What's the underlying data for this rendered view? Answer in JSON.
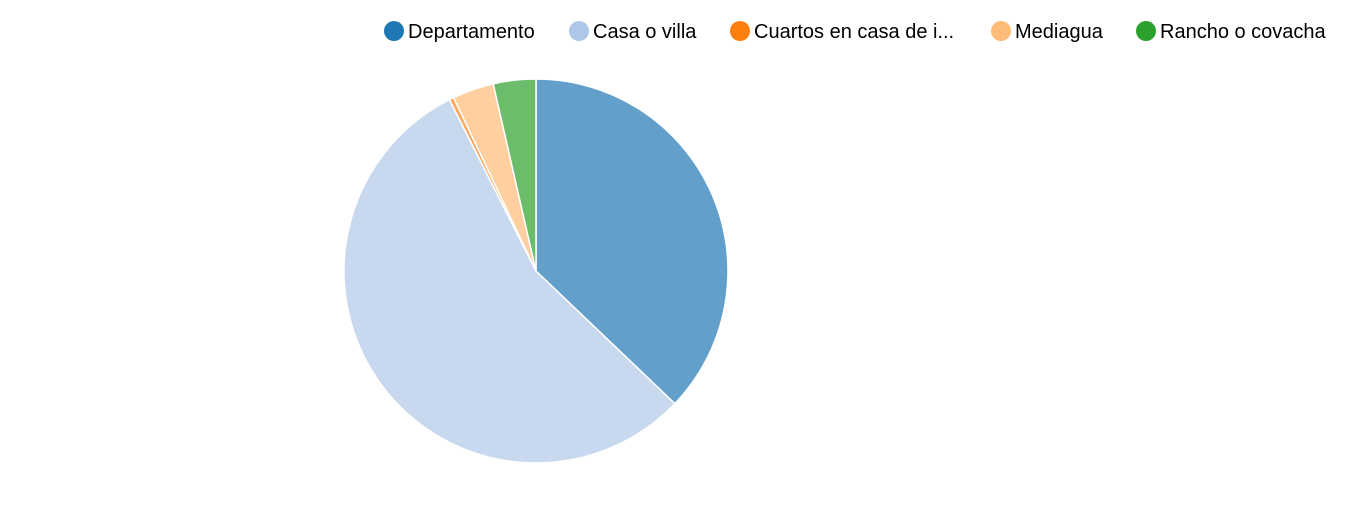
{
  "chart_data": {
    "type": "pie",
    "title": "",
    "legend_position": "top-right",
    "slices": [
      {
        "label": "Departamento",
        "value": 38.4,
        "legend_color": "#1f77b4",
        "slice_color": "#62a0cb"
      },
      {
        "label": "Casa o villa",
        "value": 57.3,
        "legend_color": "#aec7e8",
        "slice_color": "#c8d8ef"
      },
      {
        "label": "Cuartos en casa de i...",
        "value": 0.4,
        "legend_color": "#ff7f0e",
        "slice_color": "#ffa75a"
      },
      {
        "label": "Mediagua",
        "value": 3.6,
        "legend_color": "#ffbb78",
        "slice_color": "#ffcfa0"
      },
      {
        "label": "Rancho o covacha",
        "value": 3.7,
        "legend_color": "#2ca02c",
        "slice_color": "#6bbc6b"
      }
    ]
  }
}
